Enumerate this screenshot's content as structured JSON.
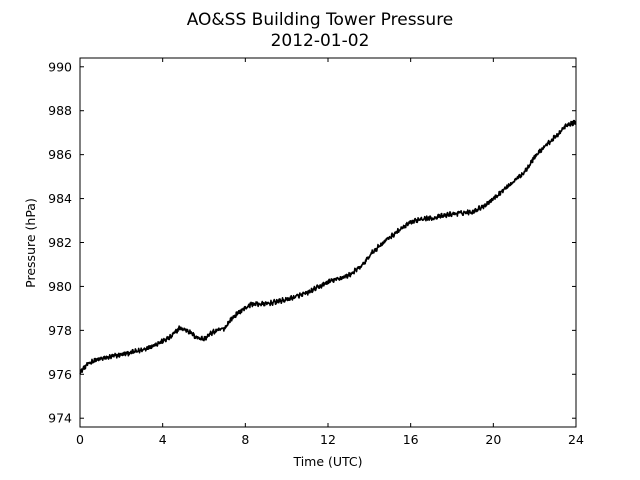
{
  "chart_data": {
    "type": "line",
    "title": "AO&SS Building Tower Pressure",
    "subtitle": "2012-01-02",
    "xlabel": "Time (UTC)",
    "ylabel": "Pressure (hPa)",
    "xlim": [
      0,
      24
    ],
    "ylim": [
      973.6,
      990.4
    ],
    "xticks": [
      0,
      4,
      8,
      12,
      16,
      20,
      24
    ],
    "yticks": [
      974,
      976,
      978,
      980,
      982,
      984,
      986,
      988,
      990
    ],
    "grid": false,
    "legend": "none",
    "series": [
      {
        "color": "#000000",
        "points": [
          [
            0.0,
            976.1
          ],
          [
            0.3,
            976.4
          ],
          [
            0.6,
            976.6
          ],
          [
            1.0,
            976.7
          ],
          [
            1.5,
            976.8
          ],
          [
            2.0,
            976.9
          ],
          [
            2.5,
            977.0
          ],
          [
            3.0,
            977.1
          ],
          [
            3.5,
            977.3
          ],
          [
            4.0,
            977.5
          ],
          [
            4.4,
            977.7
          ],
          [
            4.8,
            978.1
          ],
          [
            5.2,
            978.0
          ],
          [
            5.6,
            977.7
          ],
          [
            6.0,
            977.6
          ],
          [
            6.4,
            977.9
          ],
          [
            7.0,
            978.1
          ],
          [
            7.3,
            978.5
          ],
          [
            7.8,
            978.9
          ],
          [
            8.3,
            979.2
          ],
          [
            9.0,
            979.2
          ],
          [
            10.0,
            979.4
          ],
          [
            11.0,
            979.7
          ],
          [
            12.0,
            980.2
          ],
          [
            13.0,
            980.5
          ],
          [
            13.6,
            980.9
          ],
          [
            14.2,
            981.6
          ],
          [
            14.8,
            982.1
          ],
          [
            15.5,
            982.6
          ],
          [
            16.0,
            982.9
          ],
          [
            16.5,
            983.1
          ],
          [
            17.0,
            983.1
          ],
          [
            17.5,
            983.2
          ],
          [
            18.0,
            983.3
          ],
          [
            19.0,
            983.4
          ],
          [
            19.6,
            983.7
          ],
          [
            20.0,
            984.0
          ],
          [
            20.5,
            984.4
          ],
          [
            21.0,
            984.8
          ],
          [
            21.5,
            985.2
          ],
          [
            22.0,
            985.9
          ],
          [
            22.5,
            986.4
          ],
          [
            23.0,
            986.8
          ],
          [
            23.5,
            987.3
          ],
          [
            24.0,
            987.5
          ]
        ]
      }
    ]
  }
}
